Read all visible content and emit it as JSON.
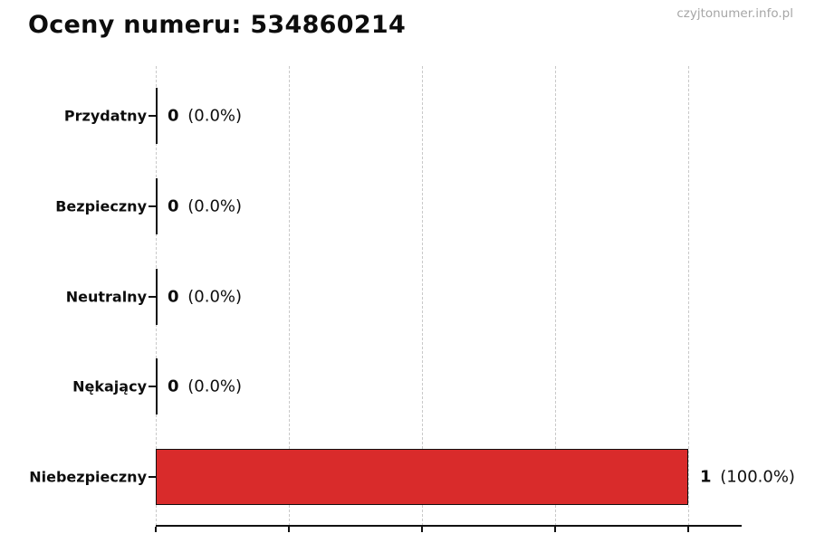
{
  "page": {
    "title": "Oceny numeru: 534860214",
    "watermark": "czyjtonumer.info.pl"
  },
  "chart_data": {
    "type": "bar",
    "orientation": "horizontal",
    "title": "Oceny numeru: 534860214",
    "categories": [
      "Przydatny",
      "Bezpieczny",
      "Neutralny",
      "Nękający",
      "Niebezpieczny"
    ],
    "values": [
      0,
      0,
      0,
      0,
      1
    ],
    "xlim": [
      0,
      1.1
    ],
    "x_ticks": [
      0,
      0.25,
      0.5,
      0.75,
      1.0
    ],
    "x_tick_labels_visible": false,
    "grid": "dashed-vertical",
    "grid_color": "#c9c9c9",
    "bar_color": "#d92b2b",
    "bar_edge_color": "#111111",
    "bars": [
      {
        "label": "Przydatny",
        "count": "0",
        "percent": "(0.0%)"
      },
      {
        "label": "Bezpieczny",
        "count": "0",
        "percent": "(0.0%)"
      },
      {
        "label": "Neutralny",
        "count": "0",
        "percent": "(0.0%)"
      },
      {
        "label": "Nękający",
        "count": "0",
        "percent": "(0.0%)"
      },
      {
        "label": "Niebezpieczny",
        "count": "1",
        "percent": "(100.0%)"
      }
    ]
  }
}
